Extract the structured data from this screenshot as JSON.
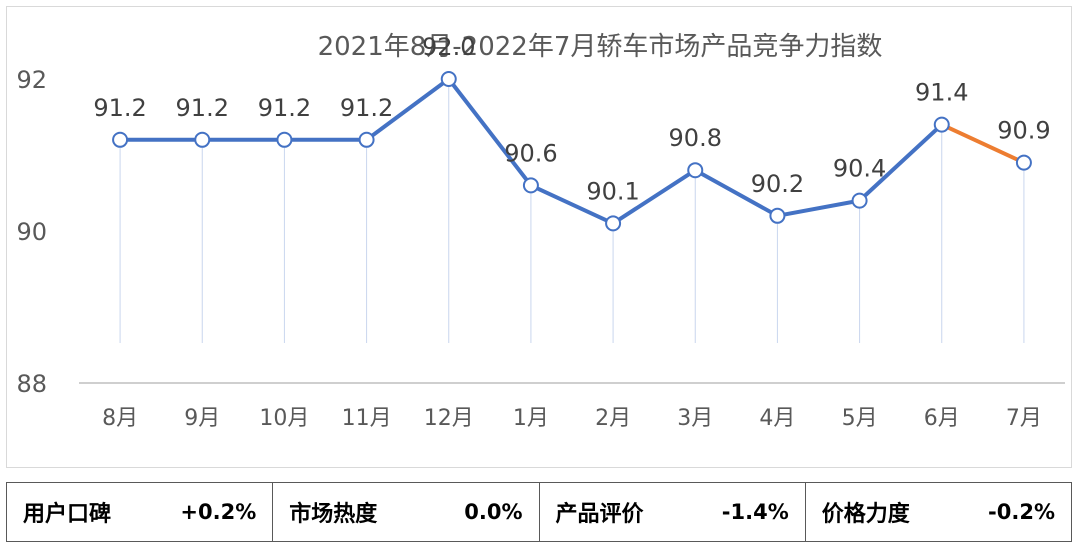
{
  "chart_data": {
    "type": "line",
    "title": "2021年8月-2022年7月轿车市场产品竞争力指数",
    "categories": [
      "8月",
      "9月",
      "10月",
      "11月",
      "12月",
      "1月",
      "2月",
      "3月",
      "4月",
      "5月",
      "6月",
      "7月"
    ],
    "values": [
      91.2,
      91.2,
      91.2,
      91.2,
      92.0,
      90.6,
      90.1,
      90.8,
      90.2,
      90.4,
      91.4,
      90.9
    ],
    "data_labels": [
      "91.2",
      "91.2",
      "91.2",
      "91.2",
      "92.0",
      "90.6",
      "90.1",
      "90.8",
      "90.2",
      "90.4",
      "91.4",
      "90.9"
    ],
    "ylim": [
      88,
      92
    ],
    "yticks": [
      "88",
      "90",
      "92"
    ],
    "xlabel": "",
    "ylabel": "",
    "colors": {
      "main": "#4472c4",
      "last_segment": "#ed7d31",
      "axis": "#bfbfbf",
      "drop": "#c9d6ee"
    }
  },
  "metrics": [
    {
      "label": "用户口碑",
      "value": "+0.2%"
    },
    {
      "label": "市场热度",
      "value": "0.0%"
    },
    {
      "label": "产品评价",
      "value": "-1.4%"
    },
    {
      "label": "价格力度",
      "value": "-0.2%"
    }
  ]
}
